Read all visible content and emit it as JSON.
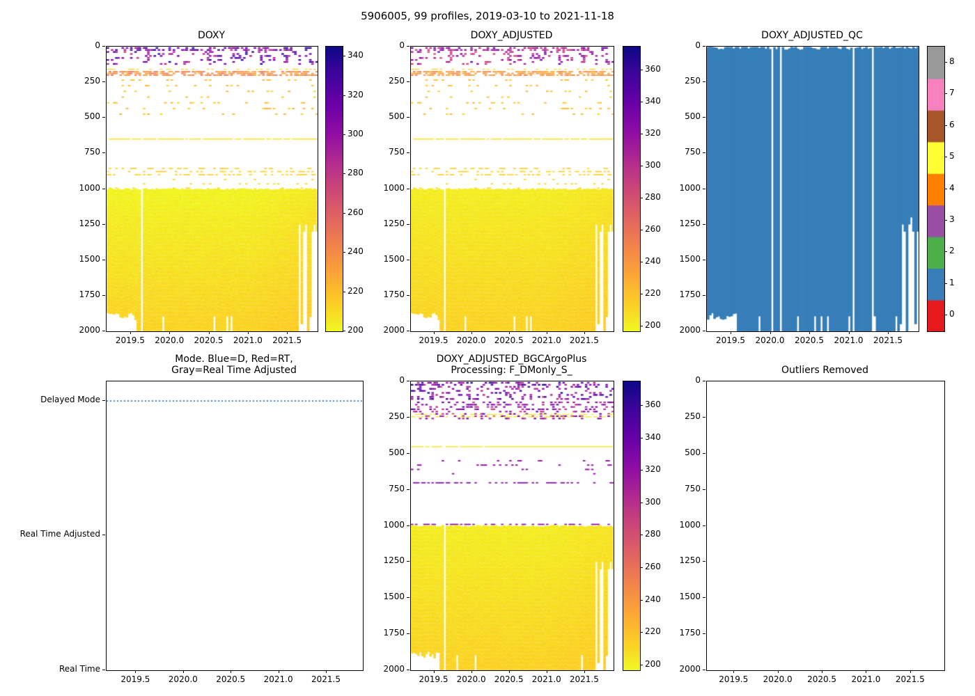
{
  "figure": {
    "title": "5906005, 99 profiles, 2019-03-10 to 2021-11-18",
    "background": "#ffffff",
    "float_id": "5906005",
    "n_profiles_text": "99 profiles",
    "date_range_text": "2019-03-10 to 2021-11-18"
  },
  "chart_data": [
    {
      "type": "heatmap",
      "title": "DOXY",
      "variant": "doxy",
      "x_range": [
        2019.19,
        2021.88
      ],
      "x_ticks": [
        "2019.5",
        "2020.0",
        "2020.5",
        "2021.0",
        "2021.5"
      ],
      "y_range": [
        0,
        2000
      ],
      "y_inverted": true,
      "y_ticks": [
        "0",
        "250",
        "500",
        "750",
        "1000",
        "1250",
        "1500",
        "1750",
        "2000"
      ],
      "n_profiles": 99,
      "seed": 7,
      "gap_indices": [
        16
      ],
      "colorbar": {
        "type": "continuous",
        "colormap": "plasma_r",
        "vmin": 200,
        "vmax": 345,
        "ticks": [
          "340",
          "320",
          "300",
          "280",
          "260",
          "240",
          "220",
          "200"
        ]
      },
      "description": "Dissolved oxygen vs depth/time: sparse dark purple values (280-345) above 250 m, orange band ~170-210 m, scattered yellow marks 250-1000 m, solid yellow-gold block (~200-220) from 1000 m to ~1900-2000 m with ragged white gaps after 2021.5"
    },
    {
      "type": "heatmap",
      "title": "DOXY_ADJUSTED",
      "variant": "doxy",
      "x_range": [
        2019.19,
        2021.88
      ],
      "x_ticks": [
        "2019.5",
        "2020.0",
        "2020.5",
        "2021.0",
        "2021.5"
      ],
      "y_range": [
        0,
        2000
      ],
      "y_inverted": true,
      "y_ticks": [
        "0",
        "250",
        "500",
        "750",
        "1000",
        "1250",
        "1500",
        "1750",
        "2000"
      ],
      "n_profiles": 99,
      "seed": 7,
      "gap_indices": [
        16
      ],
      "colorbar": {
        "type": "continuous",
        "colormap": "plasma_r",
        "vmin": 197,
        "vmax": 375,
        "ticks": [
          "360",
          "340",
          "320",
          "300",
          "280",
          "260",
          "240",
          "220",
          "200"
        ]
      },
      "description": "Adjusted dissolved oxygen, same structure as DOXY with colorbar extended to 360+"
    },
    {
      "type": "heatmap",
      "title": "DOXY_ADJUSTED_QC",
      "variant": "qc",
      "fill_color": "#377eb8",
      "x_range": [
        2019.19,
        2021.88
      ],
      "x_ticks": [
        "2019.5",
        "2020.0",
        "2020.5",
        "2021.0",
        "2021.5"
      ],
      "y_range": [
        0,
        2000
      ],
      "y_inverted": true,
      "y_ticks": [
        "0",
        "250",
        "500",
        "750",
        "1000",
        "1250",
        "1500",
        "1750",
        "2000"
      ],
      "n_profiles": 99,
      "seed": 13,
      "gap_indices": [
        30,
        34,
        68,
        77
      ],
      "colorbar": {
        "type": "discrete",
        "ticks": [
          "0",
          "1",
          "2",
          "3",
          "4",
          "5",
          "6",
          "7",
          "8"
        ],
        "colors": [
          "#e41a1c",
          "#377eb8",
          "#4daf4a",
          "#984ea3",
          "#ff7f00",
          "#ffff33",
          "#a65628",
          "#f781bf",
          "#999999"
        ]
      },
      "description": "QC flags: essentially all values flag 1 (good, blue) from surface to ~1900-2000 m; a few missing profile columns appear as white vertical lines"
    },
    {
      "type": "line",
      "title": "Mode. Blue=D, Red=RT,\nGray=Real Time Adjusted",
      "x_range": [
        2019.19,
        2021.88
      ],
      "x_ticks": [
        "2019.5",
        "2020.0",
        "2020.5",
        "2021.0",
        "2021.5"
      ],
      "y_categories": [
        {
          "label": "Delayed Mode",
          "pos": 0.068
        },
        {
          "label": "Real Time Adjusted",
          "pos": 0.532
        },
        {
          "label": "Real Time",
          "pos": 1.0
        }
      ],
      "series": [
        {
          "name": "processing-mode",
          "category": "Delayed Mode",
          "color": "#1f77b4",
          "style": "dotted",
          "x_span": [
            2019.19,
            2021.88
          ]
        }
      ],
      "description": "All 99 profiles are Delayed Mode (dotted blue line across the whole record)"
    },
    {
      "type": "heatmap",
      "title": "DOXY_ADJUSTED_BGCArgoPlus\nProcessing: F_DMonly_S_",
      "variant": "bgc",
      "x_range": [
        2019.19,
        2021.88
      ],
      "x_ticks": [
        "2019.5",
        "2020.0",
        "2020.5",
        "2021.0",
        "2021.5"
      ],
      "y_range": [
        0,
        2000
      ],
      "y_inverted": true,
      "y_ticks": [
        "0",
        "250",
        "500",
        "750",
        "1000",
        "1250",
        "1500",
        "1750",
        "2000"
      ],
      "n_profiles": 99,
      "seed": 21,
      "gap_indices": [
        16
      ],
      "colorbar": {
        "type": "continuous",
        "colormap": "plasma_r",
        "vmin": 197,
        "vmax": 375,
        "ticks": [
          "360",
          "340",
          "320",
          "300",
          "280",
          "260",
          "240",
          "220",
          "200"
        ]
      },
      "description": "BGC-Argo-Plus processed oxygen: dense purple marks above 260 m, thin yellow lines ~230/245 m and a solid yellow line ~450 m, purple dashes ~700 m and ~1000 m, solid yellow-gold block 1000-2000 m"
    },
    {
      "type": "empty",
      "title": "Outliers Removed",
      "x_range": [
        2019.19,
        2021.88
      ],
      "x_ticks": [
        "2019.5",
        "2020.0",
        "2020.5",
        "2021.0",
        "2021.5"
      ],
      "y_range": [
        0,
        2000
      ],
      "y_inverted": true,
      "y_ticks": [
        "0",
        "250",
        "500",
        "750",
        "1000",
        "1250",
        "1500",
        "1750",
        "2000"
      ],
      "description": "No outliers removed - empty axes"
    }
  ]
}
